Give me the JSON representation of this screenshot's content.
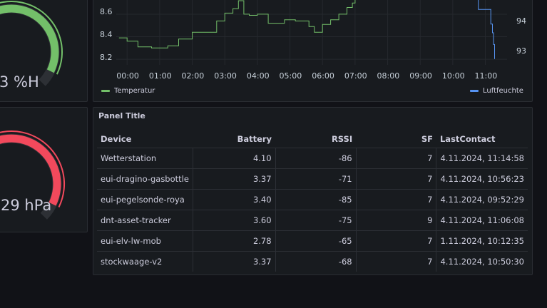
{
  "gauges": {
    "humidity": {
      "text": "3 %H",
      "color": "#73bf69",
      "fraction": 0.93
    },
    "pressure": {
      "text": "29 hPa",
      "color": "#f2495c",
      "fraction": 0.93
    }
  },
  "chart": {
    "y_ticks_left": [
      "8.6",
      "8.4",
      "8.2"
    ],
    "y_ticks_right": [
      "94",
      "93"
    ],
    "x_ticks": [
      "00:00",
      "01:00",
      "02:00",
      "03:00",
      "04:00",
      "05:00",
      "06:00",
      "07:00",
      "08:00",
      "09:00",
      "10:00",
      "11:00"
    ],
    "legend": [
      {
        "name": "Temperatur",
        "color": "#73bf69"
      },
      {
        "name": "Luftfeuchte",
        "color": "#5794f2"
      }
    ]
  },
  "chart_data": {
    "type": "line",
    "series": [
      {
        "name": "Temperatur",
        "color": "#73bf69",
        "axis": "left",
        "x": [
          "23:45",
          "00:00",
          "00:20",
          "00:45",
          "01:00",
          "01:15",
          "01:35",
          "02:00",
          "02:20",
          "02:45",
          "03:00",
          "03:15",
          "03:25",
          "03:35",
          "03:45",
          "04:00",
          "04:20",
          "04:50",
          "05:10",
          "05:35",
          "05:45",
          "06:00",
          "06:15",
          "06:30",
          "06:45",
          "06:55",
          "07:00"
        ],
        "y": [
          8.39,
          8.36,
          8.31,
          8.3,
          8.3,
          8.32,
          8.38,
          8.44,
          8.44,
          8.54,
          8.61,
          8.65,
          8.72,
          8.6,
          8.59,
          8.6,
          8.52,
          8.55,
          8.54,
          8.49,
          8.44,
          8.51,
          8.55,
          8.6,
          8.66,
          8.7,
          8.75
        ]
      },
      {
        "name": "Luftfeuchte",
        "color": "#5794f2",
        "axis": "right",
        "x": [
          "10:45",
          "10:47",
          "11:05",
          "11:10",
          "11:13",
          "11:15",
          "11:17"
        ],
        "y": [
          95.1,
          94.7,
          94.7,
          94.2,
          93.9,
          93.5,
          93.0
        ]
      }
    ],
    "ylim_left": [
      8.15,
      8.72
    ],
    "ylim_right": [
      92.8,
      95.0
    ],
    "grid": true,
    "legend_position": "bottom"
  },
  "table_panel": {
    "title": "Panel Title",
    "headers": {
      "device": "Device",
      "battery": "Battery",
      "rssi": "RSSI",
      "sf": "SF",
      "last_contact": "LastContact"
    },
    "rows": [
      {
        "device": "Wetterstation",
        "battery": "4.10",
        "rssi": "-86",
        "sf": "7",
        "last_contact": "4.11.2024, 11:14:58"
      },
      {
        "device": "eui-dragino-gasbottle",
        "battery": "3.37",
        "rssi": "-71",
        "sf": "7",
        "last_contact": "4.11.2024, 10:56:23"
      },
      {
        "device": "eui-pegelsonde-roya",
        "battery": "3.40",
        "rssi": "-85",
        "sf": "7",
        "last_contact": "4.11.2024, 09:52:29"
      },
      {
        "device": "dnt-asset-tracker",
        "battery": "3.60",
        "rssi": "-75",
        "sf": "9",
        "last_contact": "4.11.2024, 11:06:08"
      },
      {
        "device": "eui-elv-lw-mob",
        "battery": "2.78",
        "rssi": "-65",
        "sf": "7",
        "last_contact": "1.11.2024, 10:12:35"
      },
      {
        "device": "stockwaage-v2",
        "battery": "3.37",
        "rssi": "-68",
        "sf": "7",
        "last_contact": "4.11.2024, 10:50:30"
      }
    ]
  }
}
